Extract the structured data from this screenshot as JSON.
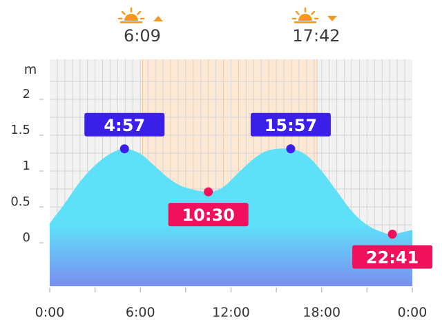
{
  "sun": {
    "sunrise": {
      "time": "6:09",
      "icon": "sunrise-icon",
      "arrow": "up"
    },
    "sunset": {
      "time": "17:42",
      "icon": "sunset-icon",
      "arrow": "down"
    },
    "icon_color": "#f39a1e"
  },
  "chart_data": {
    "type": "area",
    "title": "",
    "xlabel": "",
    "ylabel": "m",
    "x_ticks": [
      "0:00",
      "6:00",
      "12:00",
      "18:00",
      "0:00"
    ],
    "y_ticks": [
      "0",
      "0.5",
      "1",
      "1.5",
      "2"
    ],
    "xlim": [
      0,
      24
    ],
    "ylim": [
      -0.6,
      2.5
    ],
    "grid": true,
    "daylight": {
      "start": 6.15,
      "end": 17.7
    },
    "series": [
      {
        "x": [
          0,
          1,
          2,
          3,
          4,
          4.95,
          6,
          7,
          8,
          9,
          10.5,
          11.5,
          12.5,
          13.5,
          14.5,
          15.95,
          17,
          18,
          19,
          20,
          21,
          22,
          22.68,
          24
        ],
        "y": [
          0.27,
          0.55,
          0.85,
          1.08,
          1.24,
          1.31,
          1.24,
          1.06,
          0.88,
          0.77,
          0.71,
          0.78,
          0.98,
          1.17,
          1.29,
          1.31,
          1.22,
          1.0,
          0.72,
          0.44,
          0.25,
          0.15,
          0.12,
          0.18
        ]
      }
    ],
    "extremes": [
      {
        "label": "4:57",
        "x": 4.95,
        "y": 1.31,
        "kind": "high"
      },
      {
        "label": "10:30",
        "x": 10.5,
        "y": 0.71,
        "kind": "low"
      },
      {
        "label": "15:57",
        "x": 15.95,
        "y": 1.31,
        "kind": "high"
      },
      {
        "label": "22:41",
        "x": 22.68,
        "y": 0.12,
        "kind": "low"
      }
    ],
    "colors": {
      "high": "#3a1fe8",
      "low": "#f0105c",
      "water_top": "#5ee1f8",
      "water_bottom": "#7a8ff2",
      "daylight": "#fde8d4",
      "night": "#f2f2f2"
    }
  }
}
